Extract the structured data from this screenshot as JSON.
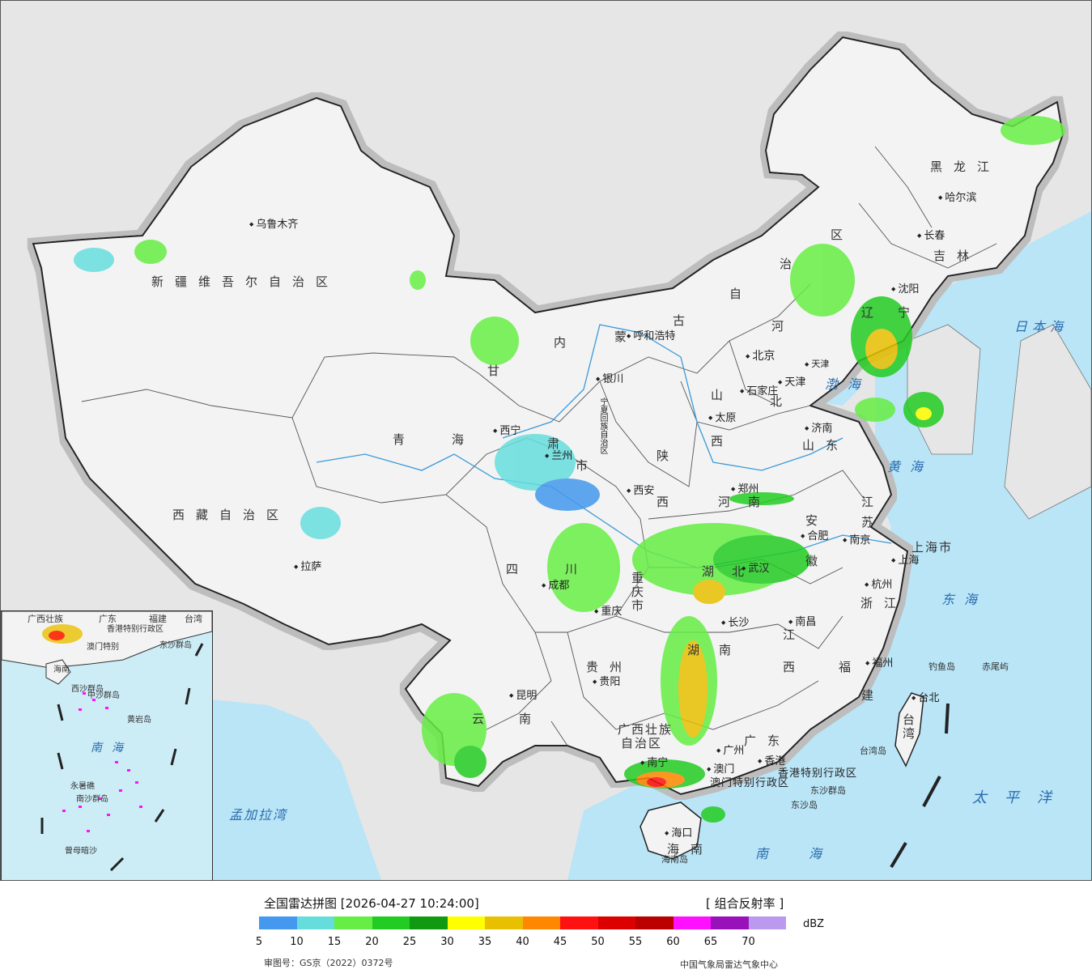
{
  "map": {
    "provinces": [
      {
        "id": "xinjiang",
        "text": "新疆维吾尔自治区"
      },
      {
        "id": "xizang",
        "text": "西藏自治区"
      },
      {
        "id": "qinghai-1",
        "text": "青"
      },
      {
        "id": "qinghai-2",
        "text": "海"
      },
      {
        "id": "gansu-1",
        "text": "甘"
      },
      {
        "id": "gansu-2",
        "text": "肃"
      },
      {
        "id": "neimenggu-1",
        "text": "内"
      },
      {
        "id": "neimenggu-2",
        "text": "蒙"
      },
      {
        "id": "neimenggu-3",
        "text": "古"
      },
      {
        "id": "neimenggu-4",
        "text": "自"
      },
      {
        "id": "neimenggu-5",
        "text": "治"
      },
      {
        "id": "neimenggu-6",
        "text": "区"
      },
      {
        "id": "heilongjiang",
        "text": "黑龙江"
      },
      {
        "id": "jilin",
        "text": "吉林"
      },
      {
        "id": "liaoning-1",
        "text": "辽"
      },
      {
        "id": "liaoning-2",
        "text": "宁"
      },
      {
        "id": "hebei-1",
        "text": "河"
      },
      {
        "id": "hebei-2",
        "text": "北"
      },
      {
        "id": "shanxi-1",
        "text": "山"
      },
      {
        "id": "shanxi-2",
        "text": "西"
      },
      {
        "id": "shaanxi-1",
        "text": "陕"
      },
      {
        "id": "shaanxi-2",
        "text": "西"
      },
      {
        "id": "ningxia",
        "text": "宁夏回族自治区"
      },
      {
        "id": "shandong",
        "text": "山东"
      },
      {
        "id": "henan-1",
        "text": "河"
      },
      {
        "id": "henan-2",
        "text": "南"
      },
      {
        "id": "jiangsu-1",
        "text": "江"
      },
      {
        "id": "jiangsu-2",
        "text": "苏"
      },
      {
        "id": "anhui-1",
        "text": "安"
      },
      {
        "id": "anhui-2",
        "text": "徽"
      },
      {
        "id": "shanghai",
        "text": "上海市"
      },
      {
        "id": "zhejiang",
        "text": "浙江"
      },
      {
        "id": "hubei-1",
        "text": "湖"
      },
      {
        "id": "hubei-2",
        "text": "北"
      },
      {
        "id": "sichuan-1",
        "text": "四"
      },
      {
        "id": "sichuan-2",
        "text": "川"
      },
      {
        "id": "chongqing",
        "text": "重庆市"
      },
      {
        "id": "jiangxi-1",
        "text": "江"
      },
      {
        "id": "jiangxi-2",
        "text": "西"
      },
      {
        "id": "hunan-1",
        "text": "湖"
      },
      {
        "id": "hunan-2",
        "text": "南"
      },
      {
        "id": "guizhou",
        "text": "贵州"
      },
      {
        "id": "fujian-1",
        "text": "福"
      },
      {
        "id": "fujian-2",
        "text": "建"
      },
      {
        "id": "yunnan-1",
        "text": "云"
      },
      {
        "id": "yunnan-2",
        "text": "南"
      },
      {
        "id": "guangxi-1",
        "text": "广西壮族"
      },
      {
        "id": "guangxi-2",
        "text": "自治区"
      },
      {
        "id": "guangdong",
        "text": "广东"
      },
      {
        "id": "taiwan",
        "text": "台湾"
      },
      {
        "id": "hainan-1",
        "text": "海"
      },
      {
        "id": "hainan-2",
        "text": "南"
      },
      {
        "id": "tianjin",
        "text": "天津"
      },
      {
        "id": "gansu-city",
        "text": "市"
      }
    ],
    "cities": [
      {
        "id": "urumqi",
        "text": "乌鲁木齐"
      },
      {
        "id": "lhasa",
        "text": "拉萨"
      },
      {
        "id": "xining",
        "text": "西宁"
      },
      {
        "id": "lanzhou",
        "text": "兰州"
      },
      {
        "id": "yinchuan",
        "text": "银川"
      },
      {
        "id": "hohhot",
        "text": "呼和浩特"
      },
      {
        "id": "beijing",
        "text": "北京"
      },
      {
        "id": "tianjin-city",
        "text": "天津"
      },
      {
        "id": "shijiazhuang",
        "text": "石家庄"
      },
      {
        "id": "taiyuan",
        "text": "太原"
      },
      {
        "id": "jinan",
        "text": "济南"
      },
      {
        "id": "xian",
        "text": "西安"
      },
      {
        "id": "zhengzhou",
        "text": "郑州"
      },
      {
        "id": "hefei",
        "text": "合肥"
      },
      {
        "id": "nanjing",
        "text": "南京"
      },
      {
        "id": "shanghai-city",
        "text": "上海"
      },
      {
        "id": "hangzhou",
        "text": "杭州"
      },
      {
        "id": "wuhan",
        "text": "武汉"
      },
      {
        "id": "chengdu",
        "text": "成都"
      },
      {
        "id": "chongqing-city",
        "text": "重庆"
      },
      {
        "id": "changsha",
        "text": "长沙"
      },
      {
        "id": "nanchang",
        "text": "南昌"
      },
      {
        "id": "fuzhou",
        "text": "福州"
      },
      {
        "id": "guiyang",
        "text": "贵阳"
      },
      {
        "id": "kunming",
        "text": "昆明"
      },
      {
        "id": "nanning",
        "text": "南宁"
      },
      {
        "id": "guangzhou",
        "text": "广州"
      },
      {
        "id": "haikou",
        "text": "海口"
      },
      {
        "id": "taibei",
        "text": "台北"
      },
      {
        "id": "harbin",
        "text": "哈尔滨"
      },
      {
        "id": "changchun",
        "text": "长春"
      },
      {
        "id": "shenyang",
        "text": "沈阳"
      },
      {
        "id": "xianggang",
        "text": "香港"
      },
      {
        "id": "aomen",
        "text": "澳门"
      }
    ],
    "seas": [
      {
        "id": "bohai",
        "text": "渤海"
      },
      {
        "id": "huanghai",
        "text": "黄海"
      },
      {
        "id": "donghai",
        "text": "东海"
      },
      {
        "id": "nanhai",
        "text": "南海"
      },
      {
        "id": "riben",
        "text": "日本海"
      },
      {
        "id": "taipingyang",
        "text": "太平洋"
      },
      {
        "id": "mengjiala",
        "text": "孟加拉湾"
      }
    ],
    "islands": [
      {
        "id": "diaoyu",
        "text": "钓鱼岛"
      },
      {
        "id": "chiwei",
        "text": "赤尾屿"
      },
      {
        "id": "taiwan-isl",
        "text": "台湾岛"
      },
      {
        "id": "dongsha-q",
        "text": "东沙群岛"
      },
      {
        "id": "dongsha-d",
        "text": "东沙岛"
      },
      {
        "id": "hainan-isl",
        "text": "海南岛"
      }
    ],
    "sar": [
      {
        "id": "hk",
        "text": "香港特别行政区"
      },
      {
        "id": "mo",
        "text": "澳门特别行政区"
      }
    ],
    "inset_labels": [
      {
        "id": "i-guangxi",
        "text": "广西壮族"
      },
      {
        "id": "i-guangdong",
        "text": "广东"
      },
      {
        "id": "i-fujian",
        "text": "福建"
      },
      {
        "id": "i-taiwan",
        "text": "台湾"
      },
      {
        "id": "i-hk",
        "text": "香港特别行政区"
      },
      {
        "id": "i-mo",
        "text": "澳门特别"
      },
      {
        "id": "i-dongsha",
        "text": "东沙群岛"
      },
      {
        "id": "i-hainan",
        "text": "海南"
      },
      {
        "id": "i-xisha",
        "text": "西沙群岛"
      },
      {
        "id": "i-zhongsha",
        "text": "中沙群岛"
      },
      {
        "id": "i-huangyan",
        "text": "黄岩岛"
      },
      {
        "id": "i-nanhai",
        "text": "南海"
      },
      {
        "id": "i-nansha",
        "text": "南沙群岛"
      },
      {
        "id": "i-yongshu",
        "text": "永暑礁"
      },
      {
        "id": "i-zengmu",
        "text": "曾母暗沙"
      }
    ]
  },
  "legend": {
    "title": "全国雷达拼图 [2026-04-27 10:24:00]",
    "product": "[ 组合反射率 ]",
    "unit": "dBZ",
    "colors": [
      "#4499ee",
      "#66dddd",
      "#66ee44",
      "#22cc22",
      "#119911",
      "#ffff00",
      "#e8c000",
      "#ff8800",
      "#ff1111",
      "#dd0000",
      "#bb0000",
      "#ff11ff",
      "#9911bb",
      "#bb99ee"
    ],
    "ticks": [
      "5",
      "10",
      "15",
      "20",
      "25",
      "30",
      "35",
      "40",
      "45",
      "50",
      "55",
      "60",
      "65",
      "70"
    ],
    "approval": "审图号：GS京（2022）0372号",
    "credit": "中国气象局雷达气象中心"
  }
}
